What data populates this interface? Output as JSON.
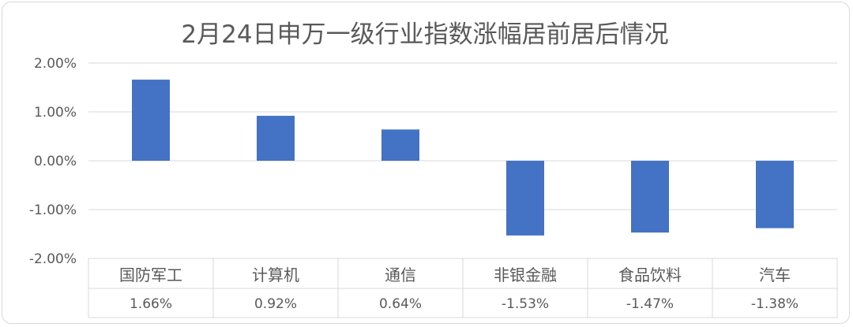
{
  "chart_data": {
    "type": "bar",
    "title": "2月24日申万一级行业指数涨幅居前居后情况",
    "categories": [
      "国防军工",
      "计算机",
      "通信",
      "非银金融",
      "食品饮料",
      "汽车"
    ],
    "values": [
      1.66,
      0.92,
      0.64,
      -1.53,
      -1.47,
      -1.38
    ],
    "value_labels": [
      "1.66%",
      "0.92%",
      "0.64%",
      "-1.53%",
      "-1.47%",
      "-1.38%"
    ],
    "ylim": [
      -2.0,
      2.0
    ],
    "yticks": [
      2.0,
      1.0,
      0.0,
      -1.0,
      -2.0
    ],
    "ytick_labels": [
      "2.00%",
      "1.00%",
      "0.00%",
      "-1.00%",
      "-2.00%"
    ],
    "xlabel": "",
    "ylabel": "",
    "grid": true,
    "data_table": true,
    "bar_color": "#4472C4"
  }
}
